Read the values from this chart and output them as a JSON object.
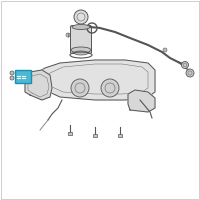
{
  "bg_color": "#ffffff",
  "border_color": "#c8c8c8",
  "highlight_color": "#4db8d4",
  "line_color": "#999999",
  "dark_line": "#555555",
  "mid_line": "#777777",
  "tank_fill": "#e2e2e2",
  "part_fill": "#d8d8d8",
  "fig_width": 2.0,
  "fig_height": 2.0,
  "dpi": 100
}
